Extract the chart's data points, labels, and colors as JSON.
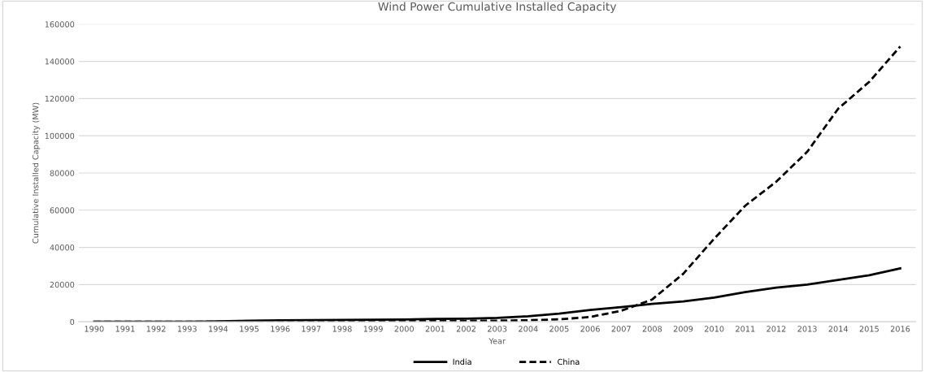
{
  "chart_data": {
    "type": "line",
    "title": "Wind Power Cumulative Installed Capacity",
    "xlabel": "Year",
    "ylabel": "Cumulative Installed Capacity (MW)",
    "categories": [
      "1990",
      "1991",
      "1992",
      "1993",
      "1994",
      "1995",
      "1996",
      "1997",
      "1998",
      "1999",
      "2000",
      "2001",
      "2002",
      "2003",
      "2004",
      "2005",
      "2006",
      "2007",
      "2008",
      "2009",
      "2010",
      "2011",
      "2012",
      "2013",
      "2014",
      "2015",
      "2016"
    ],
    "series": [
      {
        "name": "India",
        "color": "#000000",
        "line_style": "solid",
        "values": [
          0,
          0,
          0,
          0,
          200,
          600,
          800,
          900,
          1000,
          1100,
          1200,
          1500,
          1700,
          2100,
          3000,
          4400,
          6300,
          7900,
          9600,
          10900,
          13000,
          16000,
          18400,
          20000,
          22500,
          25000,
          28700
        ]
      },
      {
        "name": "China",
        "color": "#000000",
        "line_style": "dashed",
        "values": [
          0,
          0,
          0,
          0,
          0,
          0,
          100,
          200,
          200,
          300,
          300,
          400,
          500,
          600,
          800,
          1300,
          2600,
          5900,
          12000,
          25800,
          44700,
          62400,
          75300,
          91400,
          114600,
          129000,
          148000
        ]
      }
    ],
    "ylim": [
      0,
      160000
    ],
    "yticks": [
      0,
      20000,
      40000,
      60000,
      80000,
      100000,
      120000,
      140000,
      160000
    ],
    "grid": "y",
    "legend": "bottom",
    "marker": "none"
  }
}
